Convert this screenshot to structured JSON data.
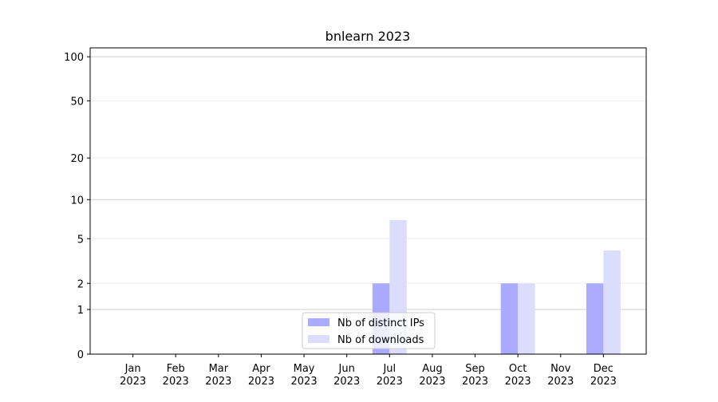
{
  "chart_data": {
    "type": "bar",
    "title": "bnlearn 2023",
    "categories": [
      "Jan 2023",
      "Feb 2023",
      "Mar 2023",
      "Apr 2023",
      "May 2023",
      "Jun 2023",
      "Jul 2023",
      "Aug 2023",
      "Sep 2023",
      "Oct 2023",
      "Nov 2023",
      "Dec 2023"
    ],
    "series": [
      {
        "name": "Nb of distinct IPs",
        "color": "#aaaaff",
        "values": [
          0,
          0,
          0,
          0,
          0,
          0,
          2,
          0,
          0,
          2,
          0,
          2
        ]
      },
      {
        "name": "Nb of downloads",
        "color": "#dcdcfc",
        "values": [
          0,
          0,
          0,
          0,
          0,
          0,
          7,
          0,
          0,
          2,
          0,
          4
        ]
      }
    ],
    "yscale": "symlog",
    "ylim": [
      0,
      115
    ],
    "yticks": [
      0,
      1,
      2,
      5,
      10,
      20,
      50,
      100
    ],
    "grid": true,
    "legend": "lower center"
  }
}
